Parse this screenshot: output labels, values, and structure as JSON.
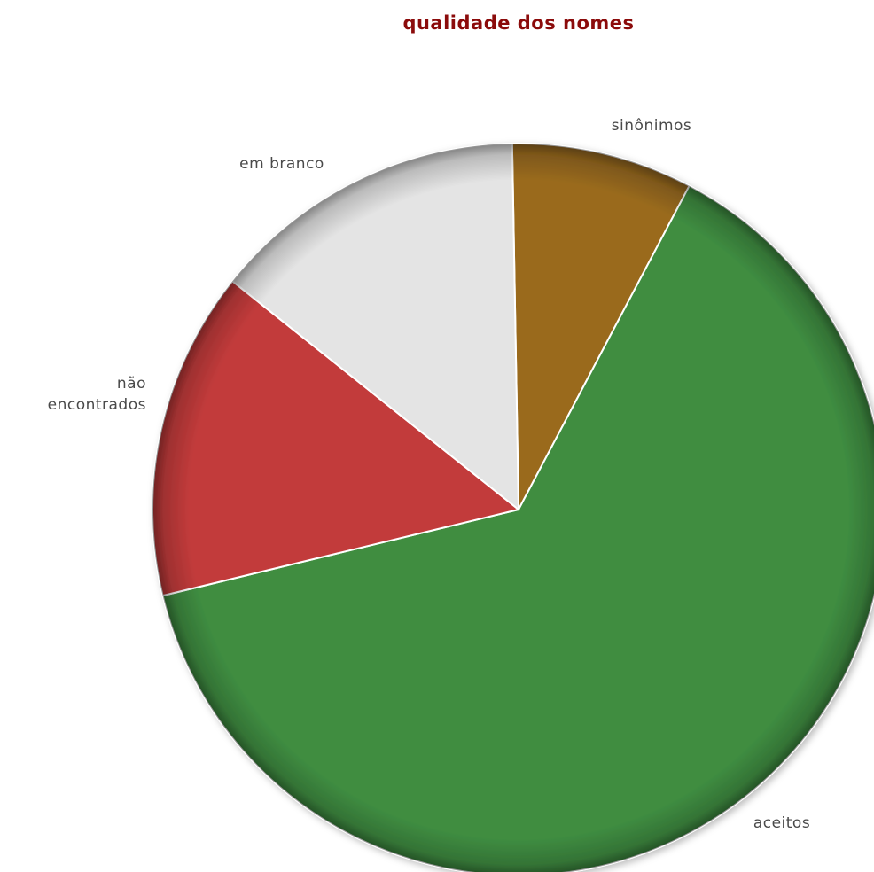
{
  "chart_data": {
    "type": "pie",
    "title": "qualidade dos nomes",
    "slices": [
      {
        "label": "sinônimos",
        "value": 8.0,
        "color": "#9a6b1f"
      },
      {
        "label": "aceitos",
        "value": 63.5,
        "color": "#3f8d41"
      },
      {
        "label": "não encontrados",
        "label_lines": [
          "não",
          "encontrados"
        ],
        "value": 14.5,
        "color": "#c23b3b"
      },
      {
        "label": "em branco",
        "value": 14.0,
        "color": "#e4e4e4"
      }
    ]
  }
}
